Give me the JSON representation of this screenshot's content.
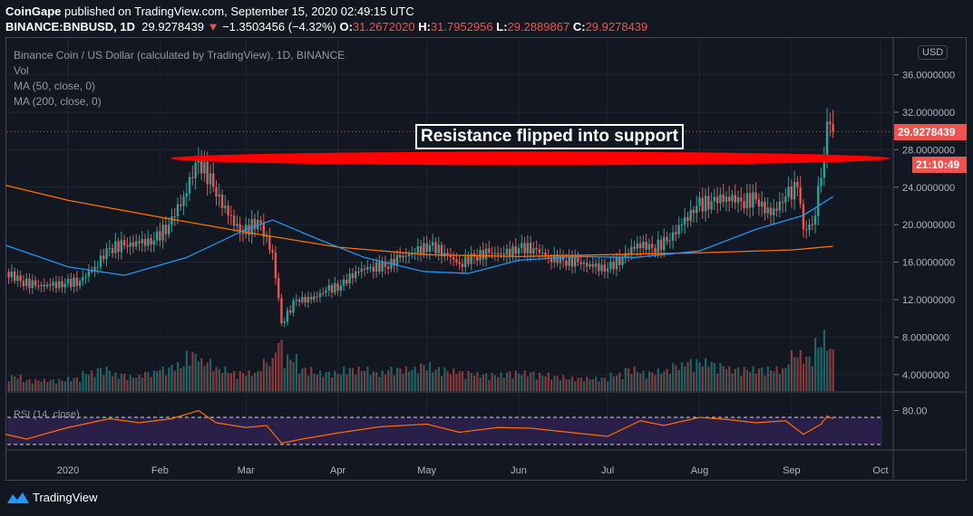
{
  "header": {
    "publisher": "CoinGape",
    "published_text": "published on TradingView.com, September 15, 2020 02:49:15 UTC",
    "symbol": "BINANCE:BNBUSD, 1D",
    "last": "29.9278439",
    "change": "−1.3503456 (−4.32%)",
    "o_label": "O:",
    "open": "31.2672020",
    "h_label": "H:",
    "high": "31.7952956",
    "l_label": "L:",
    "low": "29.2889867",
    "c_label": "C:",
    "close": "29.9278439"
  },
  "legend": {
    "title": "Binance Coin / US Dollar (calculated by TradingView), 1D, BINANCE",
    "vol": "Vol",
    "ma50": "MA (50, close, 0)",
    "ma200": "MA (200, close, 0)",
    "rsi": "RSI (14, close)"
  },
  "price_axis": {
    "currency": "USD",
    "last_price_tag": "29.9278439",
    "countdown_tag": "21:10:49"
  },
  "annotation": {
    "text": "Resistance flipped into support",
    "level": 27.5
  },
  "footer": {
    "brand": "TradingView"
  },
  "colors": {
    "up": "#26a69a",
    "down": "#ef5350",
    "ma50": "#2196f3",
    "ma200": "#ff6d00",
    "rsi": "#ff6d00",
    "rsi_band": "#2a1f48",
    "annotation": "#ff0000"
  },
  "chart_data": {
    "type": "candlestick",
    "y_scale": "linear",
    "ylim": [
      2,
      38
    ],
    "y_ticks": [
      "36.0000000",
      "32.0000000",
      "28.0000000",
      "24.0000000",
      "20.0000000",
      "16.0000000",
      "12.0000000",
      "8.0000000",
      "4.0000000"
    ],
    "y_tick_values": [
      36,
      32,
      28,
      24,
      20,
      16,
      12,
      8,
      4
    ],
    "x_ticks": [
      "2020",
      "Feb",
      "Mar",
      "Apr",
      "May",
      "Jun",
      "Jul",
      "Aug",
      "Sep",
      "Oct"
    ],
    "x_tick_dates": [
      "2020-01-01",
      "2020-02-01",
      "2020-03-01",
      "2020-04-01",
      "2020-05-01",
      "2020-06-01",
      "2020-07-01",
      "2020-08-01",
      "2020-09-01",
      "2020-10-01"
    ],
    "grid": true,
    "closes": [
      [
        "2019-12-11",
        15
      ],
      [
        "2019-12-16",
        14
      ],
      [
        "2019-12-21",
        13.5
      ],
      [
        "2019-12-26",
        13.5
      ],
      [
        "2019-12-31",
        13.7
      ],
      [
        "2020-01-05",
        14
      ],
      [
        "2020-01-10",
        15.5
      ],
      [
        "2020-01-15",
        17.5
      ],
      [
        "2020-01-20",
        17.8
      ],
      [
        "2020-01-25",
        18
      ],
      [
        "2020-01-30",
        18.3
      ],
      [
        "2020-02-04",
        20
      ],
      [
        "2020-02-09",
        23
      ],
      [
        "2020-02-14",
        27
      ],
      [
        "2020-02-19",
        24
      ],
      [
        "2020-02-24",
        21
      ],
      [
        "2020-02-29",
        19
      ],
      [
        "2020-03-05",
        20.5
      ],
      [
        "2020-03-10",
        17
      ],
      [
        "2020-03-13",
        9.5
      ],
      [
        "2020-03-18",
        12
      ],
      [
        "2020-03-23",
        12
      ],
      [
        "2020-03-28",
        13
      ],
      [
        "2020-04-02",
        13.5
      ],
      [
        "2020-04-07",
        15
      ],
      [
        "2020-04-12",
        15.5
      ],
      [
        "2020-04-17",
        15.5
      ],
      [
        "2020-04-22",
        16.5
      ],
      [
        "2020-04-27",
        17
      ],
      [
        "2020-05-02",
        17.8
      ],
      [
        "2020-05-07",
        17
      ],
      [
        "2020-05-12",
        15.8
      ],
      [
        "2020-05-17",
        16.6
      ],
      [
        "2020-05-22",
        17
      ],
      [
        "2020-05-27",
        16.8
      ],
      [
        "2020-06-01",
        17.5
      ],
      [
        "2020-06-06",
        17.5
      ],
      [
        "2020-06-11",
        16.5
      ],
      [
        "2020-06-16",
        16.2
      ],
      [
        "2020-06-21",
        16
      ],
      [
        "2020-06-26",
        15.5
      ],
      [
        "2020-07-01",
        15.3
      ],
      [
        "2020-07-06",
        16.5
      ],
      [
        "2020-07-11",
        18
      ],
      [
        "2020-07-16",
        17.5
      ],
      [
        "2020-07-21",
        18.2
      ],
      [
        "2020-07-26",
        20
      ],
      [
        "2020-07-31",
        22
      ],
      [
        "2020-08-05",
        22.5
      ],
      [
        "2020-08-10",
        23
      ],
      [
        "2020-08-15",
        22.5
      ],
      [
        "2020-08-20",
        22.7
      ],
      [
        "2020-08-25",
        21
      ],
      [
        "2020-08-30",
        23
      ],
      [
        "2020-09-03",
        24
      ],
      [
        "2020-09-05",
        19.5
      ],
      [
        "2020-09-08",
        20
      ],
      [
        "2020-09-11",
        25
      ],
      [
        "2020-09-13",
        31
      ],
      [
        "2020-09-15",
        29.93
      ]
    ],
    "ma50": [
      [
        "2019-12-11",
        17.8
      ],
      [
        "2020-01-01",
        15.5
      ],
      [
        "2020-01-20",
        14.6
      ],
      [
        "2020-02-10",
        16.5
      ],
      [
        "2020-03-01",
        19.5
      ],
      [
        "2020-03-10",
        20.5
      ],
      [
        "2020-03-25",
        18.5
      ],
      [
        "2020-04-10",
        16.5
      ],
      [
        "2020-04-30",
        15
      ],
      [
        "2020-05-15",
        14.8
      ],
      [
        "2020-06-01",
        16.2
      ],
      [
        "2020-06-20",
        16.6
      ],
      [
        "2020-07-10",
        16.5
      ],
      [
        "2020-08-01",
        17.2
      ],
      [
        "2020-08-20",
        19.5
      ],
      [
        "2020-09-05",
        21
      ],
      [
        "2020-09-15",
        23
      ]
    ],
    "ma200": [
      [
        "2019-12-11",
        24.2
      ],
      [
        "2020-01-01",
        22.6
      ],
      [
        "2020-02-01",
        20.8
      ],
      [
        "2020-03-01",
        19.2
      ],
      [
        "2020-04-01",
        17.6
      ],
      [
        "2020-05-01",
        16.8
      ],
      [
        "2020-06-01",
        16.6
      ],
      [
        "2020-07-01",
        16.8
      ],
      [
        "2020-08-01",
        17
      ],
      [
        "2020-09-01",
        17.3
      ],
      [
        "2020-09-15",
        17.7
      ]
    ],
    "volume": [
      0.3,
      0.4,
      0.3,
      0.3,
      0.3,
      0.35,
      0.5,
      0.6,
      0.45,
      0.4,
      0.5,
      0.6,
      0.7,
      1.0,
      0.8,
      0.6,
      0.5,
      0.5,
      0.8,
      1.3,
      0.9,
      0.6,
      0.5,
      0.5,
      0.6,
      0.6,
      0.5,
      0.6,
      0.6,
      0.7,
      0.6,
      0.55,
      0.5,
      0.45,
      0.45,
      0.5,
      0.5,
      0.45,
      0.4,
      0.35,
      0.35,
      0.35,
      0.45,
      0.6,
      0.5,
      0.55,
      0.7,
      0.8,
      0.8,
      0.7,
      0.6,
      0.6,
      0.6,
      0.6,
      1.0,
      1.0,
      0.9,
      1.3,
      1.5,
      1.1
    ],
    "rsi": [
      [
        "2019-12-11",
        45
      ],
      [
        "2019-12-18",
        38
      ],
      [
        "2020-01-01",
        55
      ],
      [
        "2020-01-15",
        68
      ],
      [
        "2020-01-25",
        62
      ],
      [
        "2020-02-05",
        68
      ],
      [
        "2020-02-14",
        80
      ],
      [
        "2020-02-20",
        62
      ],
      [
        "2020-03-01",
        55
      ],
      [
        "2020-03-08",
        58
      ],
      [
        "2020-03-13",
        32
      ],
      [
        "2020-03-20",
        38
      ],
      [
        "2020-04-01",
        47
      ],
      [
        "2020-04-15",
        56
      ],
      [
        "2020-05-01",
        60
      ],
      [
        "2020-05-12",
        48
      ],
      [
        "2020-05-25",
        55
      ],
      [
        "2020-06-05",
        54
      ],
      [
        "2020-06-20",
        47
      ],
      [
        "2020-07-01",
        42
      ],
      [
        "2020-07-12",
        65
      ],
      [
        "2020-07-20",
        58
      ],
      [
        "2020-08-01",
        70
      ],
      [
        "2020-08-10",
        67
      ],
      [
        "2020-08-20",
        62
      ],
      [
        "2020-08-30",
        65
      ],
      [
        "2020-09-05",
        45
      ],
      [
        "2020-09-11",
        60
      ],
      [
        "2020-09-13",
        72
      ],
      [
        "2020-09-15",
        68
      ]
    ],
    "rsi_ticks": [
      "80.00"
    ],
    "rsi_bands": [
      70,
      30
    ]
  }
}
